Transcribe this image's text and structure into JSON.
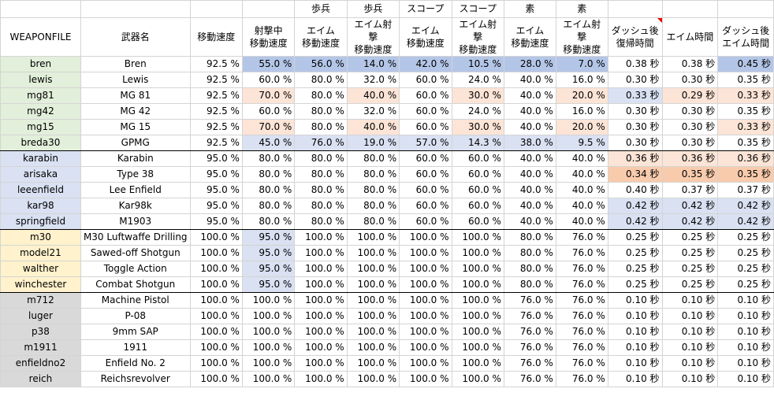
{
  "colors": {
    "green": "#e2efda",
    "blue": "#d9e1f2",
    "yellow": "#fff2cc",
    "gray": "#d9d9d9",
    "bluemid": "#b4c6e7",
    "peach": "#fce4d6",
    "orange": "#f8cbad",
    "white": "#ffffff",
    "green_border": "#70ad47"
  },
  "header_top": [
    "",
    "",
    "",
    "",
    "歩兵",
    "歩兵",
    "スコープ",
    "スコープ",
    "素",
    "素",
    "",
    "",
    ""
  ],
  "header_main": [
    "WEAPONFILE",
    "武器名",
    "移動速度",
    "射撃中\n移動速度",
    "エイム\n移動速度",
    "エイム射撃\n移動速度",
    "エイム\n移動速度",
    "エイム射撃\n移動速度",
    "エイム\n移動速度",
    "エイム射撃\n移動速度",
    "ダッシュ後\n復帰時間",
    "エイム時間",
    "ダッシュ後\nエイム時間"
  ],
  "group_colors": [
    "green",
    "green",
    "green",
    "green",
    "green",
    "green",
    "blue",
    "blue",
    "blue",
    "blue",
    "blue",
    "yellow",
    "yellow",
    "yellow",
    "yellow",
    "gray",
    "gray",
    "gray",
    "gray",
    "gray",
    "gray"
  ],
  "rows": [
    [
      "bren",
      "Bren",
      "92.5 %",
      "55.0 %",
      "56.0 %",
      "14.0 %",
      "42.0 %",
      "10.5 %",
      "28.0 %",
      "7.0 %",
      "0.38 秒",
      "0.38 秒",
      "0.45 秒"
    ],
    [
      "lewis",
      "Lewis",
      "92.5 %",
      "60.0 %",
      "80.0 %",
      "32.0 %",
      "60.0 %",
      "24.0 %",
      "40.0 %",
      "16.0 %",
      "0.30 秒",
      "0.30 秒",
      "0.35 秒"
    ],
    [
      "mg81",
      "MG 81",
      "92.5 %",
      "70.0 %",
      "80.0 %",
      "40.0 %",
      "60.0 %",
      "30.0 %",
      "40.0 %",
      "20.0 %",
      "0.33 秒",
      "0.29 秒",
      "0.33 秒"
    ],
    [
      "mg42",
      "MG 42",
      "92.5 %",
      "60.0 %",
      "80.0 %",
      "32.0 %",
      "60.0 %",
      "24.0 %",
      "40.0 %",
      "16.0 %",
      "0.30 秒",
      "0.30 秒",
      "0.35 秒"
    ],
    [
      "mg15",
      "MG 15",
      "92.5 %",
      "70.0 %",
      "80.0 %",
      "40.0 %",
      "60.0 %",
      "30.0 %",
      "40.0 %",
      "20.0 %",
      "0.30 秒",
      "0.30 秒",
      "0.33 秒"
    ],
    [
      "breda30",
      "GPMG",
      "92.5 %",
      "45.0 %",
      "76.0 %",
      "19.0 %",
      "57.0 %",
      "14.3 %",
      "38.0 %",
      "9.5 %",
      "0.30 秒",
      "0.30 秒",
      "0.35 秒"
    ],
    [
      "karabin",
      "Karabin",
      "95.0 %",
      "80.0 %",
      "80.0 %",
      "80.0 %",
      "60.0 %",
      "60.0 %",
      "40.0 %",
      "40.0 %",
      "0.36 秒",
      "0.36 秒",
      "0.36 秒"
    ],
    [
      "arisaka",
      "Type 38",
      "95.0 %",
      "80.0 %",
      "80.0 %",
      "80.0 %",
      "60.0 %",
      "60.0 %",
      "40.0 %",
      "40.0 %",
      "0.34 秒",
      "0.35 秒",
      "0.35 秒"
    ],
    [
      "leeenfield",
      "Lee Enfield",
      "95.0 %",
      "80.0 %",
      "80.0 %",
      "80.0 %",
      "60.0 %",
      "60.0 %",
      "40.0 %",
      "40.0 %",
      "0.40 秒",
      "0.37 秒",
      "0.37 秒"
    ],
    [
      "kar98",
      "Kar98k",
      "95.0 %",
      "80.0 %",
      "80.0 %",
      "80.0 %",
      "60.0 %",
      "60.0 %",
      "40.0 %",
      "40.0 %",
      "0.42 秒",
      "0.42 秒",
      "0.42 秒"
    ],
    [
      "springfield",
      "M1903",
      "95.0 %",
      "80.0 %",
      "80.0 %",
      "80.0 %",
      "60.0 %",
      "60.0 %",
      "40.0 %",
      "40.0 %",
      "0.42 秒",
      "0.42 秒",
      "0.42 秒"
    ],
    [
      "m30",
      "M30 Luftwaffe Drilling",
      "100.0 %",
      "95.0 %",
      "100.0 %",
      "100.0 %",
      "100.0 %",
      "100.0 %",
      "80.0 %",
      "76.0 %",
      "0.25 秒",
      "0.25 秒",
      "0.25 秒"
    ],
    [
      "model21",
      "Sawed-off Shotgun",
      "100.0 %",
      "95.0 %",
      "100.0 %",
      "100.0 %",
      "100.0 %",
      "100.0 %",
      "80.0 %",
      "76.0 %",
      "0.25 秒",
      "0.25 秒",
      "0.25 秒"
    ],
    [
      "walther",
      "Toggle Action",
      "100.0 %",
      "95.0 %",
      "100.0 %",
      "100.0 %",
      "100.0 %",
      "100.0 %",
      "80.0 %",
      "76.0 %",
      "0.25 秒",
      "0.25 秒",
      "0.25 秒"
    ],
    [
      "winchester",
      "Combat Shotgun",
      "100.0 %",
      "95.0 %",
      "100.0 %",
      "100.0 %",
      "100.0 %",
      "100.0 %",
      "80.0 %",
      "76.0 %",
      "0.25 秒",
      "0.25 秒",
      "0.25 秒"
    ],
    [
      "m712",
      "Machine Pistol",
      "100.0 %",
      "100.0 %",
      "100.0 %",
      "100.0 %",
      "100.0 %",
      "100.0 %",
      "76.0 %",
      "76.0 %",
      "0.10 秒",
      "0.10 秒",
      "0.10 秒"
    ],
    [
      "luger",
      "P-08",
      "100.0 %",
      "100.0 %",
      "100.0 %",
      "100.0 %",
      "100.0 %",
      "100.0 %",
      "76.0 %",
      "76.0 %",
      "0.10 秒",
      "0.10 秒",
      "0.10 秒"
    ],
    [
      "p38",
      "9mm SAP",
      "100.0 %",
      "100.0 %",
      "100.0 %",
      "100.0 %",
      "100.0 %",
      "100.0 %",
      "76.0 %",
      "76.0 %",
      "0.10 秒",
      "0.10 秒",
      "0.10 秒"
    ],
    [
      "m1911",
      "1911",
      "100.0 %",
      "100.0 %",
      "100.0 %",
      "100.0 %",
      "100.0 %",
      "100.0 %",
      "76.0 %",
      "76.0 %",
      "0.10 秒",
      "0.10 秒",
      "0.10 秒"
    ],
    [
      "enfieldno2",
      "Enfield No. 2",
      "100.0 %",
      "100.0 %",
      "100.0 %",
      "100.0 %",
      "100.0 %",
      "100.0 %",
      "76.0 %",
      "76.0 %",
      "0.10 秒",
      "0.10 秒",
      "0.10 秒"
    ],
    [
      "reich",
      "Reichsrevolver",
      "100.0 %",
      "100.0 %",
      "100.0 %",
      "100.0 %",
      "100.0 %",
      "100.0 %",
      "76.0 %",
      "76.0 %",
      "0.10 秒",
      "0.10 秒",
      "0.10 秒"
    ]
  ],
  "highlights": {
    "0": {
      "3": "bluemid",
      "4": "bluemid",
      "5": "bluemid",
      "6": "bluemid",
      "7": "bluemid",
      "8": "bluemid",
      "9": "bluemid",
      "12": "bluemid"
    },
    "2": {
      "3": "peach",
      "5": "peach",
      "7": "peach",
      "9": "peach",
      "10": "blue",
      "11": "peach",
      "12": "peach"
    },
    "4": {
      "3": "peach",
      "5": "peach",
      "7": "peach",
      "9": "peach",
      "12": "peach"
    },
    "5": {
      "3": "blue",
      "4": "blue",
      "5": "blue",
      "6": "blue",
      "7": "blue",
      "8": "blue",
      "9": "blue"
    },
    "6": {
      "10": "peach",
      "11": "peach",
      "12": "peach"
    },
    "7": {
      "10": "orange",
      "11": "orange",
      "12": "orange"
    },
    "9": {
      "10": "blue",
      "11": "blue",
      "12": "blue"
    },
    "10": {
      "10": "blue",
      "11": "blue",
      "12": "blue"
    },
    "11": {
      "3": "blue"
    },
    "12": {
      "3": "blue"
    },
    "13": {
      "3": "blue"
    },
    "14": {
      "3": "blue"
    }
  }
}
